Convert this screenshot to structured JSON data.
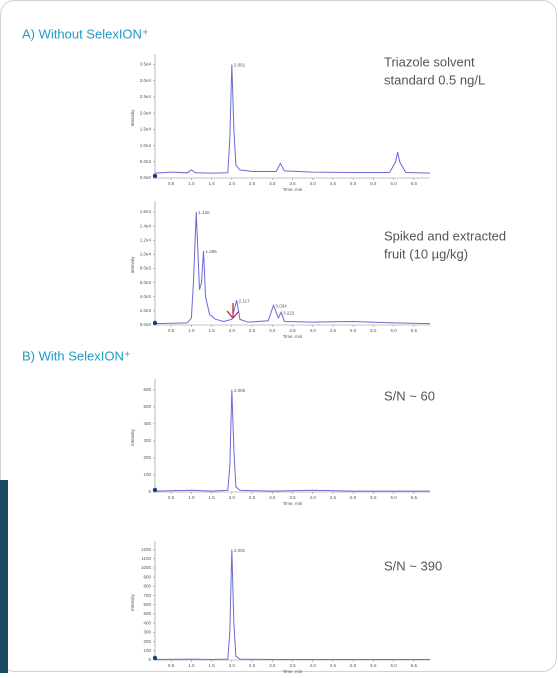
{
  "sections": [
    "A) Without SelexION⁺",
    "B) With SelexION⁺"
  ],
  "chart_data": [
    {
      "type": "line",
      "x_label": "Time, min",
      "y_label": "Intensity",
      "caption": [
        "Triazole solvent",
        "standard 0.5 ng/L"
      ],
      "color": "#6a6ad4",
      "x": [
        0.1,
        0.5,
        0.9,
        1.0,
        1.1,
        1.5,
        1.9,
        1.95,
        2.0,
        2.05,
        2.1,
        2.2,
        2.5,
        3.1,
        3.2,
        3.3,
        4.0,
        5.0,
        5.9,
        6.05,
        6.1,
        6.15,
        6.3,
        6.9
      ],
      "values": [
        1500,
        1800,
        1600,
        2500,
        1600,
        1500,
        1600,
        12000,
        35000,
        15000,
        4000,
        2500,
        2000,
        2000,
        4500,
        2200,
        1800,
        1700,
        1700,
        5000,
        8000,
        5000,
        1700,
        1500
      ],
      "peaks": [
        {
          "x": 2.0,
          "y": 35000,
          "label": "2.001"
        }
      ],
      "xlim": [
        0.1,
        6.9
      ],
      "ylim": [
        0,
        37000
      ],
      "xticks": [
        {
          "value": 0.5,
          "label": "0.5"
        },
        {
          "value": 1,
          "label": "1.0"
        },
        {
          "value": 1.5,
          "label": "1.5"
        },
        {
          "value": 2,
          "label": "2.0"
        },
        {
          "value": 2.5,
          "label": "2.5"
        },
        {
          "value": 3,
          "label": "3.0"
        },
        {
          "value": 3.5,
          "label": "3.5"
        },
        {
          "value": 4,
          "label": "4.0"
        },
        {
          "value": 4.5,
          "label": "4.5"
        },
        {
          "value": 5,
          "label": "5.0"
        },
        {
          "value": 5.5,
          "label": "5.5"
        },
        {
          "value": 6,
          "label": "6.0"
        },
        {
          "value": 6.5,
          "label": "6.5"
        }
      ],
      "yticks": [
        {
          "value": 0,
          "label": "0.0e0"
        },
        {
          "value": 5000,
          "label": "5.0e3"
        },
        {
          "value": 10000,
          "label": "1.0e4"
        },
        {
          "value": 15000,
          "label": "1.5e4"
        },
        {
          "value": 20000,
          "label": "2.0e4"
        },
        {
          "value": 25000,
          "label": "2.5e4"
        },
        {
          "value": 30000,
          "label": "3.0e4"
        },
        {
          "value": 35000,
          "label": "3.5e4"
        }
      ]
    },
    {
      "type": "line",
      "x_label": "Time, min",
      "y_label": "Intensity",
      "caption": [
        "Spiked and extracted",
        "fruit (10 µg/kg)"
      ],
      "color": "#6a6ad4",
      "x": [
        0.1,
        0.9,
        1.0,
        1.05,
        1.12,
        1.2,
        1.25,
        1.3,
        1.35,
        1.45,
        1.6,
        1.8,
        2.0,
        2.12,
        2.2,
        2.4,
        2.9,
        3.03,
        3.15,
        3.22,
        3.3,
        4.0,
        5.0,
        6.0,
        6.9
      ],
      "values": [
        200,
        300,
        1000,
        6000,
        16000,
        5000,
        6000,
        10500,
        4000,
        1500,
        800,
        500,
        800,
        3500,
        800,
        400,
        600,
        2800,
        1000,
        1800,
        500,
        400,
        500,
        300,
        200
      ],
      "peaks": [
        {
          "x": 1.12,
          "y": 16000,
          "label": "1.120"
        },
        {
          "x": 1.3,
          "y": 10500,
          "label": "1.295"
        },
        {
          "x": 2.12,
          "y": 3500,
          "label": "2.117"
        },
        {
          "x": 3.03,
          "y": 2800,
          "label": "3.034"
        },
        {
          "x": 3.22,
          "y": 1800,
          "label": "3.222"
        }
      ],
      "xlim": [
        0.1,
        6.9
      ],
      "ylim": [
        0,
        17000
      ],
      "xticks": [
        {
          "value": 0.5,
          "label": "0.5"
        },
        {
          "value": 1,
          "label": "1.0"
        },
        {
          "value": 1.5,
          "label": "1.5"
        },
        {
          "value": 2,
          "label": "2.0"
        },
        {
          "value": 2.5,
          "label": "2.5"
        },
        {
          "value": 3,
          "label": "3.0"
        },
        {
          "value": 3.5,
          "label": "3.5"
        },
        {
          "value": 4,
          "label": "4.0"
        },
        {
          "value": 4.5,
          "label": "4.5"
        },
        {
          "value": 5,
          "label": "5.0"
        },
        {
          "value": 5.5,
          "label": "5.5"
        },
        {
          "value": 6,
          "label": "6.0"
        },
        {
          "value": 6.5,
          "label": "6.5"
        }
      ],
      "yticks": [
        {
          "value": 0,
          "label": "0.0e0"
        },
        {
          "value": 2000,
          "label": "2.0e3"
        },
        {
          "value": 4000,
          "label": "4.0e3"
        },
        {
          "value": 6000,
          "label": "6.0e3"
        },
        {
          "value": 8000,
          "label": "8.0e3"
        },
        {
          "value": 10000,
          "label": "1.0e4"
        },
        {
          "value": 12000,
          "label": "1.2e4"
        },
        {
          "value": 14000,
          "label": "1.4e4"
        },
        {
          "value": 16000,
          "label": "1.6e4"
        }
      ]
    },
    {
      "type": "line",
      "x_label": "Time, min",
      "y_label": "Intensity",
      "caption": [
        "S/N ~ 60"
      ],
      "color": "#6a6ad4",
      "x": [
        0.1,
        1.0,
        1.5,
        1.9,
        1.95,
        2.0,
        2.05,
        2.1,
        2.2,
        3.0,
        4.0,
        5.0,
        6.0,
        6.9
      ],
      "values": [
        5,
        10,
        5,
        10,
        150,
        600,
        250,
        30,
        10,
        5,
        10,
        5,
        5,
        5
      ],
      "peaks": [
        {
          "x": 2.0,
          "y": 600,
          "label": "2.006"
        }
      ],
      "xlim": [
        0.1,
        6.9
      ],
      "ylim": [
        0,
        640
      ],
      "xticks": [
        {
          "value": 0.5,
          "label": "0.5"
        },
        {
          "value": 1,
          "label": "1.0"
        },
        {
          "value": 1.5,
          "label": "1.5"
        },
        {
          "value": 2,
          "label": "2.0"
        },
        {
          "value": 2.5,
          "label": "2.5"
        },
        {
          "value": 3,
          "label": "3.0"
        },
        {
          "value": 3.5,
          "label": "3.5"
        },
        {
          "value": 4,
          "label": "4.0"
        },
        {
          "value": 4.5,
          "label": "4.5"
        },
        {
          "value": 5,
          "label": "5.0"
        },
        {
          "value": 5.5,
          "label": "5.5"
        },
        {
          "value": 6,
          "label": "6.0"
        },
        {
          "value": 6.5,
          "label": "6.5"
        }
      ],
      "yticks": [
        0,
        100,
        200,
        300,
        400,
        500,
        600
      ]
    },
    {
      "type": "line",
      "x_label": "Time, min",
      "y_label": "Intensity",
      "caption": [
        "S/N ~ 390"
      ],
      "color": "#6a6ad4",
      "x": [
        0.1,
        1.0,
        1.5,
        1.9,
        1.95,
        2.0,
        2.05,
        2.1,
        2.2,
        3.0,
        4.0,
        5.0,
        6.0,
        6.9
      ],
      "values": [
        5,
        10,
        5,
        10,
        300,
        1200,
        400,
        40,
        10,
        5,
        5,
        5,
        5,
        5
      ],
      "peaks": [
        {
          "x": 2.0,
          "y": 1200,
          "label": "2.001"
        }
      ],
      "xlim": [
        0.1,
        6.9
      ],
      "ylim": [
        0,
        1250
      ],
      "xticks": [
        {
          "value": 0.5,
          "label": "0.5"
        },
        {
          "value": 1,
          "label": "1.0"
        },
        {
          "value": 1.5,
          "label": "1.5"
        },
        {
          "value": 2,
          "label": "2.0"
        },
        {
          "value": 2.5,
          "label": "2.5"
        },
        {
          "value": 3,
          "label": "3.0"
        },
        {
          "value": 3.5,
          "label": "3.5"
        },
        {
          "value": 4,
          "label": "4.0"
        },
        {
          "value": 4.5,
          "label": "4.5"
        },
        {
          "value": 5,
          "label": "5.0"
        },
        {
          "value": 5.5,
          "label": "5.5"
        },
        {
          "value": 6,
          "label": "6.0"
        },
        {
          "value": 6.5,
          "label": "6.5"
        }
      ],
      "yticks": [
        0,
        100,
        200,
        300,
        400,
        500,
        600,
        700,
        800,
        900,
        1000,
        1100,
        1200
      ]
    }
  ]
}
